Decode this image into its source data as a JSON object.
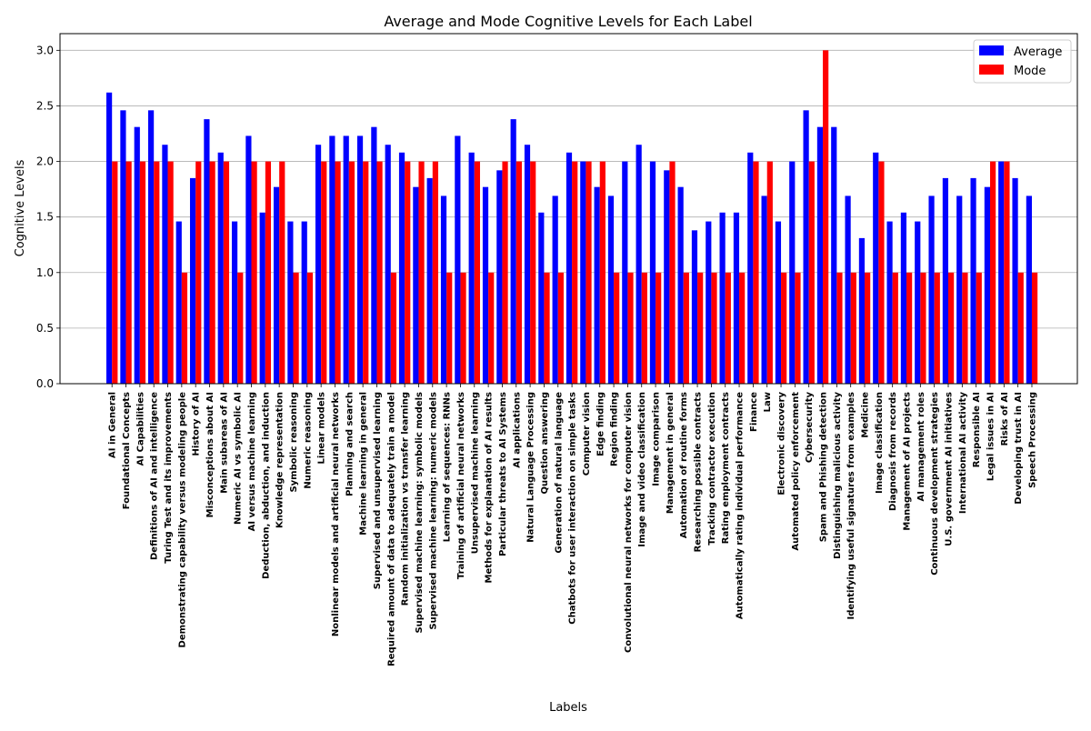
{
  "chart_data": {
    "type": "bar",
    "title": "Average and Mode Cognitive Levels for Each Label",
    "xlabel": "Labels",
    "ylabel": "Cognitive Levels",
    "ylim": [
      0,
      3.15
    ],
    "yticks": [
      "0.0",
      "0.5",
      "1.0",
      "1.5",
      "2.0",
      "2.5",
      "3.0"
    ],
    "ytick_values": [
      0,
      0.5,
      1.0,
      1.5,
      2.0,
      2.5,
      3.0
    ],
    "grid": "horizontal",
    "legend_position": "top-right",
    "categories": [
      "AI in General",
      "Foundational Concepts",
      "AI Capabilities",
      "Definitions of AI and intelligence",
      "Turing Test and its improvements",
      "Demonstrating capability versus modeling people",
      "History of AI",
      "Misconceptions about AI",
      "Main subareas of AI",
      "Numeric AI vs symbolic AI",
      "AI versus machine learning",
      "Deduction, abduction, and induction",
      "Knowledge representation",
      "Symbolic reasoning",
      "Numeric reasoning",
      "Linear models",
      "Nonlinear models and artificial neural networks",
      "Planning and search",
      "Machine learning in general",
      "Supervised and unsupervised learning",
      "Required amount of data to adequately train a model",
      "Random initialization vs transfer learning",
      "Supervised machine learning: symbolic models",
      "Supervised machine learning: numeric models",
      "Learning of sequences: RNNs",
      "Training of artificial neural networks",
      "Unsupervised machine learning",
      "Methods for explanation of AI results",
      "Particular threats to AI Systems",
      "AI applications",
      "Natural Language Processing",
      "Question answering",
      "Generation of natural language",
      "Chatbots for user interaction on simple tasks",
      "Computer vision",
      "Edge finding",
      "Region finding",
      "Convolutional neural networks for computer vision",
      "Image and video classification",
      "Image comparison",
      "Management in general",
      "Automation of routine forms",
      "Researching possible contracts",
      "Tracking contractor execution",
      "Rating employment contracts",
      "Automatically rating individual performance",
      "Finance",
      "Law",
      "Electronic discovery",
      "Automated policy enforcement",
      "Cybersecurity",
      "Spam and Phishing detection",
      "Distinguishing malicious activity",
      "Identifying useful signatures from examples",
      "Medicine",
      "Image classification",
      "Diagnosis from records",
      "Management of AI projects",
      "AI management roles",
      "Continuous development strategies",
      "U.S. government AI initiatives",
      "International AI activity",
      "Responsible AI",
      "Legal issues in AI",
      "Risks of AI",
      "Developing trust in AI",
      "Speech Processing"
    ],
    "series": [
      {
        "name": "Average",
        "color": "#0000ff",
        "values": [
          2.62,
          2.46,
          2.31,
          2.46,
          2.15,
          1.46,
          1.85,
          2.38,
          2.08,
          1.46,
          2.23,
          1.54,
          1.77,
          1.46,
          1.46,
          2.15,
          2.23,
          2.23,
          2.23,
          2.31,
          2.15,
          2.08,
          1.77,
          1.85,
          1.69,
          2.23,
          2.08,
          1.77,
          1.92,
          2.38,
          2.15,
          1.54,
          1.69,
          2.08,
          2.0,
          1.77,
          1.69,
          2.0,
          2.15,
          2.0,
          1.92,
          1.77,
          1.38,
          1.46,
          1.54,
          1.54,
          2.08,
          1.69,
          1.46,
          2.0,
          2.46,
          2.31,
          2.31,
          1.69,
          1.31,
          2.08,
          1.46,
          1.54,
          1.46,
          1.69,
          1.85,
          1.69,
          1.85,
          1.77,
          2.0,
          1.85,
          1.69
        ]
      },
      {
        "name": "Mode",
        "color": "#ff0000",
        "values": [
          2,
          2,
          2,
          2,
          2,
          1,
          2,
          2,
          2,
          1,
          2,
          2,
          2,
          1,
          1,
          2,
          2,
          2,
          2,
          2,
          1,
          2,
          2,
          2,
          1,
          1,
          2,
          1,
          2,
          2,
          2,
          1,
          1,
          2,
          2,
          2,
          1,
          1,
          1,
          1,
          2,
          1,
          1,
          1,
          1,
          1,
          2,
          2,
          1,
          1,
          2,
          3,
          1,
          1,
          1,
          2,
          1,
          1,
          1,
          1,
          1,
          1,
          1,
          2,
          2,
          1,
          1
        ]
      }
    ]
  }
}
